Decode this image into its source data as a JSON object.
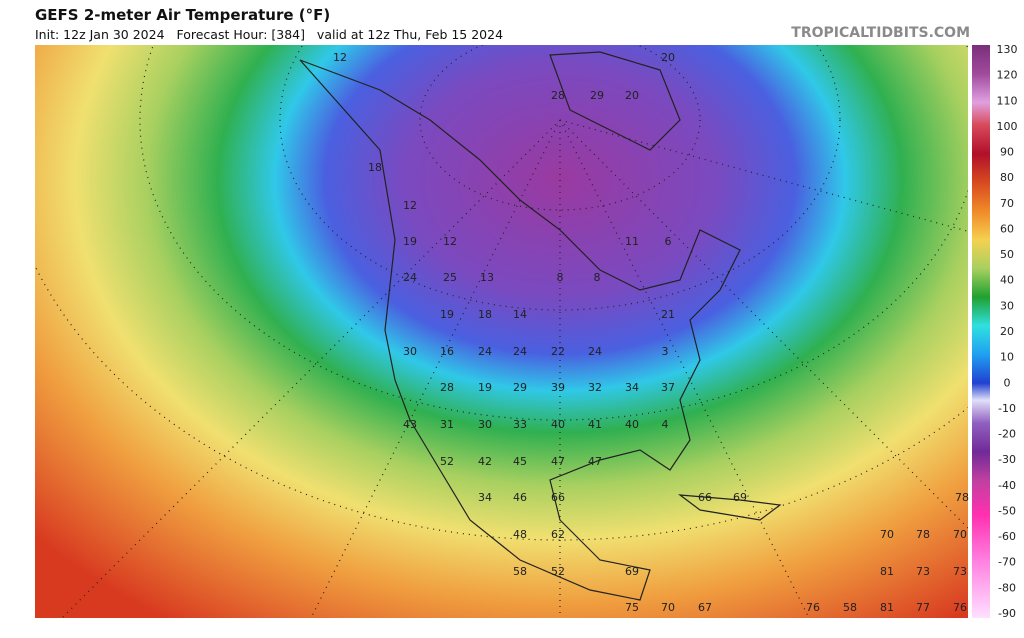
{
  "header": {
    "title": "GEFS 2-meter Air Temperature (°F)",
    "init": "Init: 12z Jan 30 2024   Forecast Hour: [384]   valid at 12z Thu, Feb 15 2024",
    "brand": "TROPICALTIDBITS.COM"
  },
  "colorbar": {
    "labels": [
      "130",
      "120",
      "110",
      "100",
      "90",
      "80",
      "70",
      "60",
      "50",
      "40",
      "30",
      "20",
      "10",
      "0",
      "-10",
      "-20",
      "-30",
      "-40",
      "-50",
      "-60",
      "-70",
      "-80",
      "-90"
    ]
  },
  "map": {
    "labels": [
      "12",
      "28",
      "29",
      "20",
      "20",
      "18",
      "12",
      "19",
      "12",
      "11",
      "6",
      "24",
      "25",
      "13",
      "8",
      "8",
      "19",
      "18",
      "14",
      "21",
      "30",
      "16",
      "24",
      "24",
      "22",
      "24",
      "3",
      "28",
      "19",
      "29",
      "39",
      "32",
      "34",
      "37",
      "43",
      "31",
      "30",
      "33",
      "40",
      "41",
      "40",
      "4",
      "52",
      "42",
      "45",
      "47",
      "47",
      "34",
      "46",
      "66",
      "66",
      "69",
      "78",
      "48",
      "62",
      "70",
      "78",
      "70",
      "58",
      "52",
      "69",
      "81",
      "73",
      "73",
      "75",
      "70",
      "67",
      "76",
      "58",
      "81",
      "77",
      "76"
    ]
  }
}
